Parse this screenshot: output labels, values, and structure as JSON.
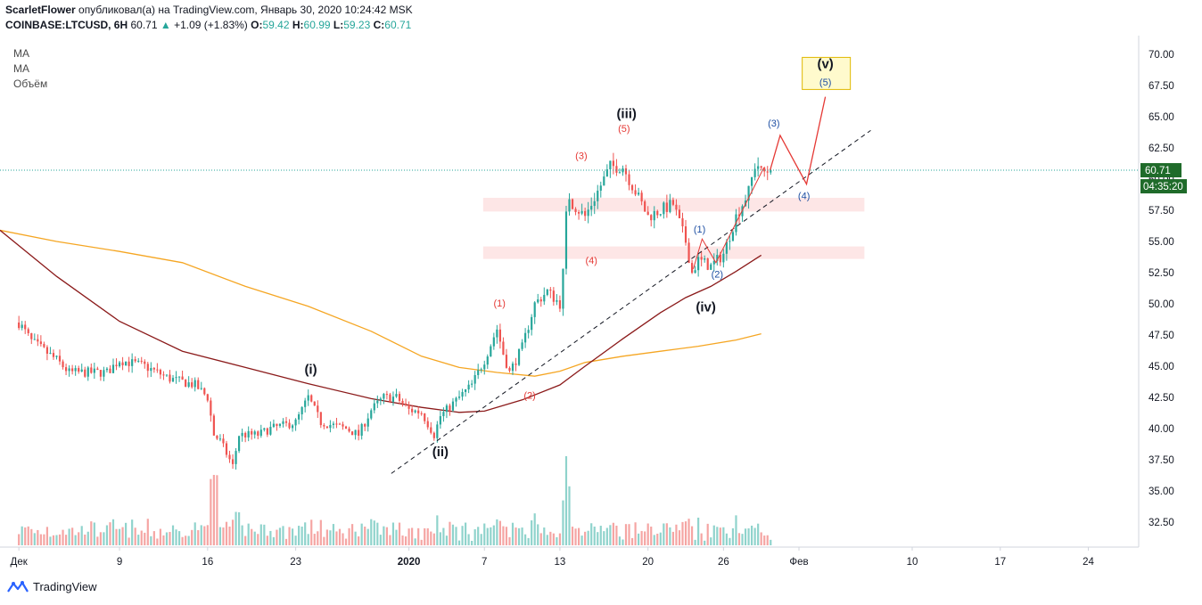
{
  "header": {
    "author": "ScarletFlower",
    "published_text": "опубликовал(а) на TradingView.com, Январь 30, 2020 10:24:42 MSK",
    "symbol": "COINBASE:LTCUSD, 6H",
    "last": "60.71",
    "change": "+1.09 (+1.83%)",
    "o_label": "O:",
    "o_val": "59.42",
    "h_label": "H:",
    "h_val": "60.99",
    "l_label": "L:",
    "l_val": "59.23",
    "c_label": "C:",
    "c_val": "60.71"
  },
  "legend": [
    "MA",
    "MA",
    "Объём"
  ],
  "price_tag": "60.71",
  "time_tag": "04:35:20",
  "footer": {
    "brand": "TradingView"
  },
  "colors": {
    "up": "#26a69a",
    "down": "#ef5350",
    "ma_fast": "#8b1a1a",
    "ma_slow": "#f5a623",
    "zone": "#fde6e6",
    "wave_red": "#e53935",
    "wave_blue": "#1e4fa3"
  },
  "chart_data": {
    "type": "candlestick",
    "ylim": [
      30.5,
      71.5
    ],
    "y_ticks": [
      32.5,
      35.0,
      37.5,
      40.0,
      42.5,
      45.0,
      47.5,
      50.0,
      52.5,
      55.0,
      57.5,
      60.0,
      62.5,
      65.0,
      67.5,
      70.0
    ],
    "y_tick_labels": [
      "32.50",
      "35.00",
      "37.50",
      "40.00",
      "42.50",
      "45.00",
      "47.50",
      "50.00",
      "52.50",
      "55.00",
      "57.50",
      "60.00",
      "62.50",
      "65.00",
      "67.50",
      "70.00"
    ],
    "x_ticks": [
      {
        "label": "Дек",
        "day": 0
      },
      {
        "label": "9",
        "day": 8
      },
      {
        "label": "16",
        "day": 15
      },
      {
        "label": "23",
        "day": 22
      },
      {
        "label": "2020",
        "day": 31
      },
      {
        "label": "7",
        "day": 37
      },
      {
        "label": "13",
        "day": 43
      },
      {
        "label": "20",
        "day": 50
      },
      {
        "label": "26",
        "day": 56
      },
      {
        "label": "Фев",
        "day": 62
      },
      {
        "label": "10",
        "day": 71
      },
      {
        "label": "17",
        "day": 78
      },
      {
        "label": "24",
        "day": 85
      }
    ],
    "x_day_range": [
      -1.5,
      89
    ],
    "price_anchors": [
      [
        0,
        48.5
      ],
      [
        1,
        47
      ],
      [
        3,
        45.5
      ],
      [
        4,
        44.5
      ],
      [
        7,
        44.5
      ],
      [
        8,
        45.5
      ],
      [
        10,
        45
      ],
      [
        12,
        44
      ],
      [
        14,
        43.5
      ],
      [
        15,
        42.5
      ],
      [
        15.5,
        39.5
      ],
      [
        16,
        39
      ],
      [
        17,
        37
      ],
      [
        17.5,
        39.5
      ],
      [
        19,
        39.5
      ],
      [
        20,
        40
      ],
      [
        22,
        40.5
      ],
      [
        23,
        42.5
      ],
      [
        24,
        40.5
      ],
      [
        26,
        40
      ],
      [
        27,
        39.5
      ],
      [
        28,
        41.5
      ],
      [
        29,
        42.5
      ],
      [
        30,
        42.5
      ],
      [
        31,
        41.5
      ],
      [
        32,
        41.3
      ],
      [
        33,
        39.5
      ],
      [
        33.5,
        41
      ],
      [
        34,
        41.5
      ],
      [
        35,
        42.5
      ],
      [
        36,
        43.5
      ],
      [
        37,
        45.5
      ],
      [
        38,
        48
      ],
      [
        38.5,
        46
      ],
      [
        39,
        44.5
      ],
      [
        40,
        46.5
      ],
      [
        41,
        50
      ],
      [
        42,
        51
      ],
      [
        43,
        50
      ],
      [
        43.3,
        53
      ],
      [
        43.6,
        59
      ],
      [
        44,
        58
      ],
      [
        45,
        57
      ],
      [
        46,
        59
      ],
      [
        47,
        61
      ],
      [
        48,
        61
      ],
      [
        49,
        59
      ],
      [
        50,
        57
      ],
      [
        51,
        57.5
      ],
      [
        52,
        58
      ],
      [
        53,
        55
      ],
      [
        53.5,
        52.5
      ],
      [
        54,
        53.5
      ],
      [
        55,
        53
      ],
      [
        56,
        54
      ],
      [
        57,
        57
      ],
      [
        58,
        59
      ],
      [
        58.6,
        61.5
      ],
      [
        59,
        60.5
      ],
      [
        59.7,
        60.7
      ]
    ],
    "ma_fast": [
      [
        -1.5,
        55.9
      ],
      [
        3,
        52.2
      ],
      [
        8,
        48.6
      ],
      [
        13,
        46.2
      ],
      [
        18,
        44.9
      ],
      [
        23,
        43.6
      ],
      [
        28,
        42.4
      ],
      [
        32,
        41.7
      ],
      [
        35,
        41.3
      ],
      [
        37,
        41.4
      ],
      [
        40,
        42.3
      ],
      [
        43,
        43.5
      ],
      [
        45,
        45.0
      ],
      [
        48,
        47.2
      ],
      [
        51,
        49.3
      ],
      [
        53,
        50.5
      ],
      [
        55,
        51.4
      ],
      [
        57,
        52.6
      ],
      [
        59,
        53.9
      ]
    ],
    "ma_slow": [
      [
        -1.5,
        55.9
      ],
      [
        3,
        55
      ],
      [
        8,
        54.2
      ],
      [
        13,
        53.3
      ],
      [
        18,
        51.4
      ],
      [
        23,
        49.8
      ],
      [
        28,
        47.8
      ],
      [
        32,
        45.8
      ],
      [
        35,
        44.9
      ],
      [
        38,
        44.5
      ],
      [
        41,
        44.2
      ],
      [
        43,
        44.6
      ],
      [
        45,
        45.3
      ],
      [
        48,
        45.8
      ],
      [
        51,
        46.2
      ],
      [
        54,
        46.6
      ],
      [
        57,
        47.1
      ],
      [
        59,
        47.6
      ]
    ],
    "volume_scale_max": 11.2,
    "zones": [
      {
        "d0": 36.9,
        "d1": 67.2,
        "ytop": 58.5,
        "ybot": 57.4
      },
      {
        "d0": 36.9,
        "d1": 67.2,
        "ytop": 54.6,
        "ybot": 53.6
      }
    ],
    "trendline": [
      [
        29.6,
        36.4
      ],
      [
        67.7,
        63.9
      ]
    ],
    "projection": [
      [
        59.7,
        60.7
      ],
      [
        60.5,
        63.5
      ],
      [
        62.6,
        59.6
      ],
      [
        64.1,
        66.6
      ]
    ],
    "wave_labels": [
      {
        "text": "(i)",
        "d": 23.2,
        "y": 44.4,
        "cls": "main"
      },
      {
        "text": "(ii)",
        "d": 33.5,
        "y": 37.8,
        "cls": "main"
      },
      {
        "text": "(iii)",
        "d": 48.3,
        "y": 64.9,
        "cls": "main"
      },
      {
        "text": "(iv)",
        "d": 54.6,
        "y": 49.4,
        "cls": "main"
      },
      {
        "text": "(v)",
        "d": 64.1,
        "y": 68.9,
        "cls": "main"
      },
      {
        "text": "(1)",
        "d": 38.2,
        "y": 49.8,
        "cls": "red"
      },
      {
        "text": "(2)",
        "d": 40.6,
        "y": 42.4,
        "cls": "red"
      },
      {
        "text": "(3)",
        "d": 44.7,
        "y": 61.6,
        "cls": "red"
      },
      {
        "text": "(4)",
        "d": 45.5,
        "y": 53.2,
        "cls": "red"
      },
      {
        "text": "(5)",
        "d": 48.1,
        "y": 63.8,
        "cls": "red"
      },
      {
        "text": "(1)",
        "d": 54.1,
        "y": 55.7,
        "cls": "blue"
      },
      {
        "text": "(2)",
        "d": 55.5,
        "y": 52.1,
        "cls": "blue"
      },
      {
        "text": "(3)",
        "d": 60.0,
        "y": 64.2,
        "cls": "blue"
      },
      {
        "text": "(4)",
        "d": 62.4,
        "y": 58.4,
        "cls": "blue"
      },
      {
        "text": "(5)",
        "d": 64.1,
        "y": 67.5,
        "cls": "blue"
      }
    ]
  }
}
